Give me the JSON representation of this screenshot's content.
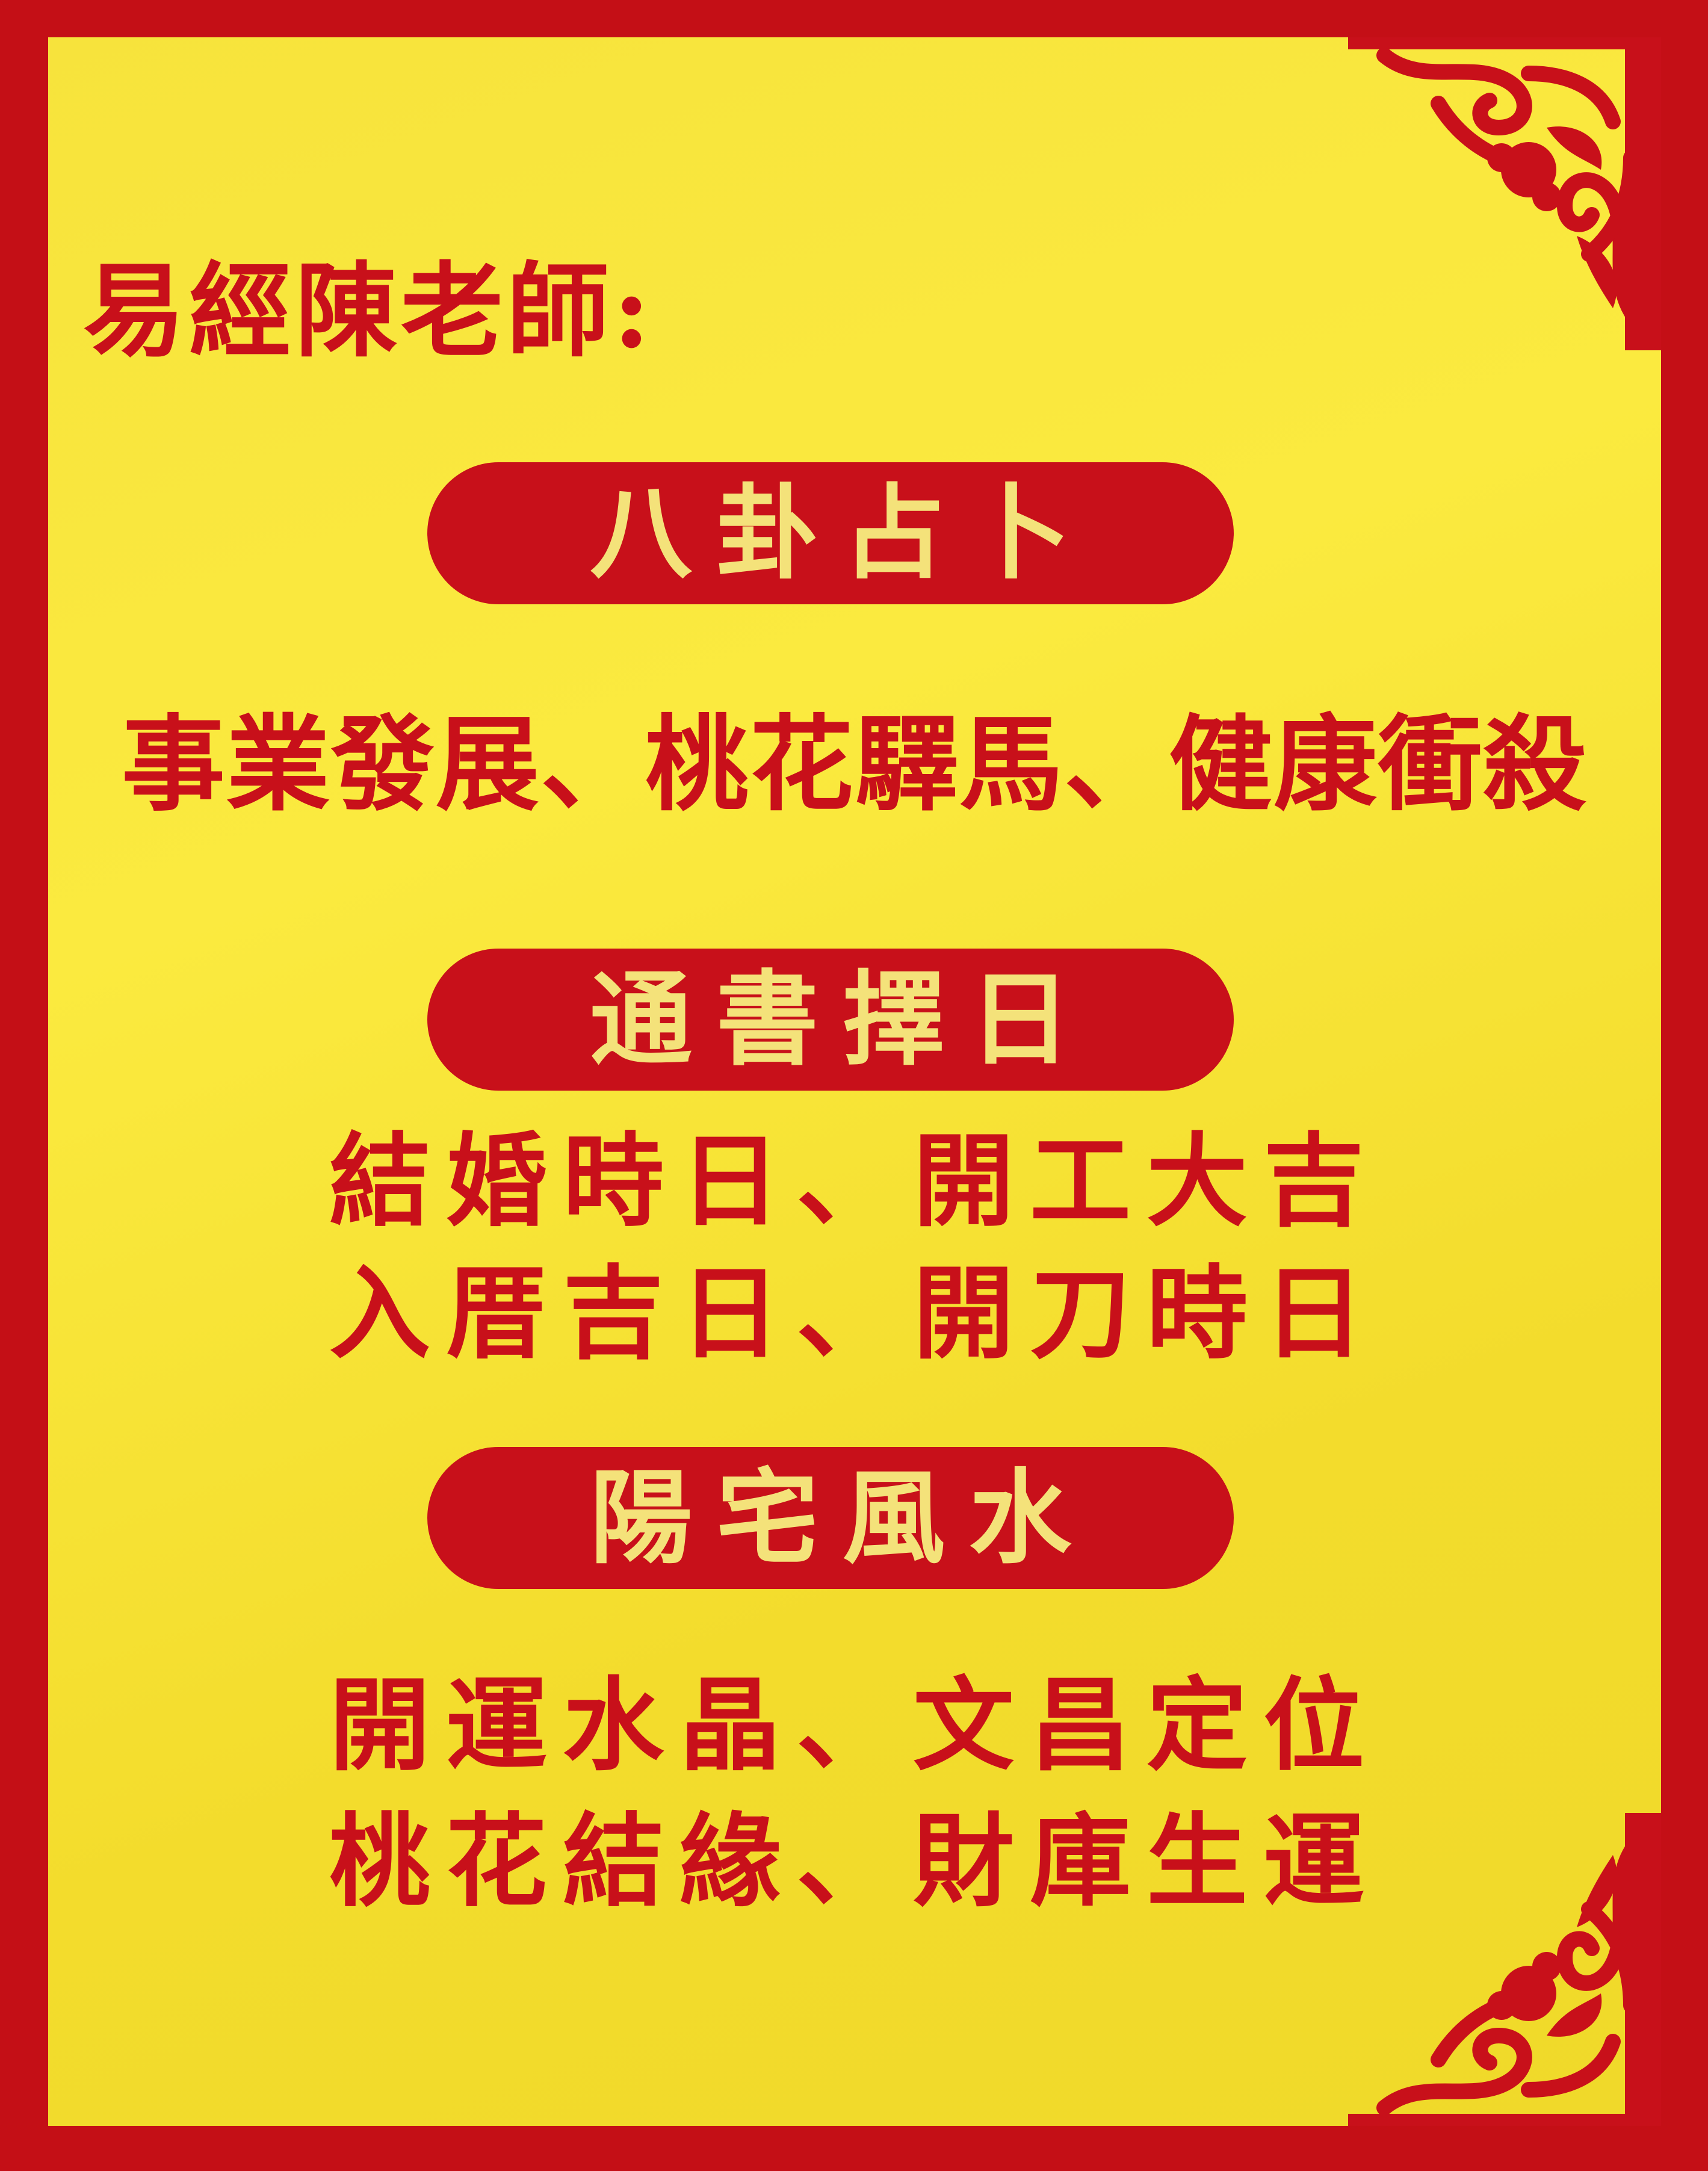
{
  "sign": {
    "title": "易經陳老師:",
    "sections": [
      {
        "heading": "八卦占卜",
        "lines": [
          "事業發展、桃花驛馬、健康衝殺"
        ]
      },
      {
        "heading": "通書擇日",
        "lines": [
          "結婚時日、開工大吉",
          "入厝吉日、開刀時日"
        ]
      },
      {
        "heading": "陽宅風水",
        "lines": [
          "開運水晶、文昌定位",
          "桃花結緣、財庫生運"
        ]
      }
    ],
    "colors": {
      "border_red": "#c40f16",
      "panel_yellow": "#f7e33c",
      "text_red": "#c8101a",
      "heading_text": "#f4e27a"
    },
    "ornaments": [
      "corner-scroll-ornament-top-right",
      "corner-scroll-ornament-bottom-right"
    ]
  }
}
